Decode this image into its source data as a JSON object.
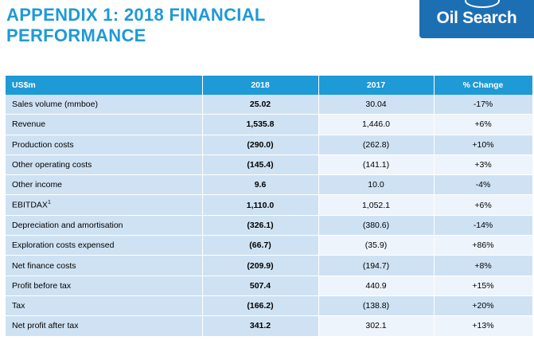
{
  "header": {
    "title_line1": "APPENDIX 1: 2018 FINANCIAL",
    "title_line2": "PERFORMANCE",
    "logo_text": "Oil Search"
  },
  "table": {
    "columns": [
      "US$m",
      "2018",
      "2017",
      "% Change"
    ],
    "rows": [
      {
        "label": "Sales volume (mmboe)",
        "sup": "",
        "v2018": "25.02",
        "v2017": "30.04",
        "change": "-17%"
      },
      {
        "label": "Revenue",
        "sup": "",
        "v2018": "1,535.8",
        "v2017": "1,446.0",
        "change": "+6%"
      },
      {
        "label": "Production costs",
        "sup": "",
        "v2018": "(290.0)",
        "v2017": "(262.8)",
        "change": "+10%"
      },
      {
        "label": "Other operating costs",
        "sup": "",
        "v2018": "(145.4)",
        "v2017": "(141.1)",
        "change": "+3%"
      },
      {
        "label": "Other income",
        "sup": "",
        "v2018": "9.6",
        "v2017": "10.0",
        "change": "-4%"
      },
      {
        "label": "EBITDAX",
        "sup": "1",
        "v2018": "1,110.0",
        "v2017": "1,052.1",
        "change": "+6%"
      },
      {
        "label": "Depreciation and amortisation",
        "sup": "",
        "v2018": "(326.1)",
        "v2017": "(380.6)",
        "change": "-14%"
      },
      {
        "label": "Exploration costs expensed",
        "sup": "",
        "v2018": "(66.7)",
        "v2017": "(35.9)",
        "change": "+86%"
      },
      {
        "label": "Net finance costs",
        "sup": "",
        "v2018": "(209.9)",
        "v2017": "(194.7)",
        "change": "+8%"
      },
      {
        "label": "Profit before tax",
        "sup": "",
        "v2018": "507.4",
        "v2017": "440.9",
        "change": "+15%"
      },
      {
        "label": "Tax",
        "sup": "",
        "v2018": "(166.2)",
        "v2017": "(138.8)",
        "change": "+20%"
      },
      {
        "label": "Net profit after tax",
        "sup": "",
        "v2018": "341.2",
        "v2017": "302.1",
        "change": "+13%"
      }
    ]
  },
  "colors": {
    "accent": "#1e9ad6",
    "logo_bg": "#1d6fb3",
    "row_band": "#cfe2f3"
  }
}
